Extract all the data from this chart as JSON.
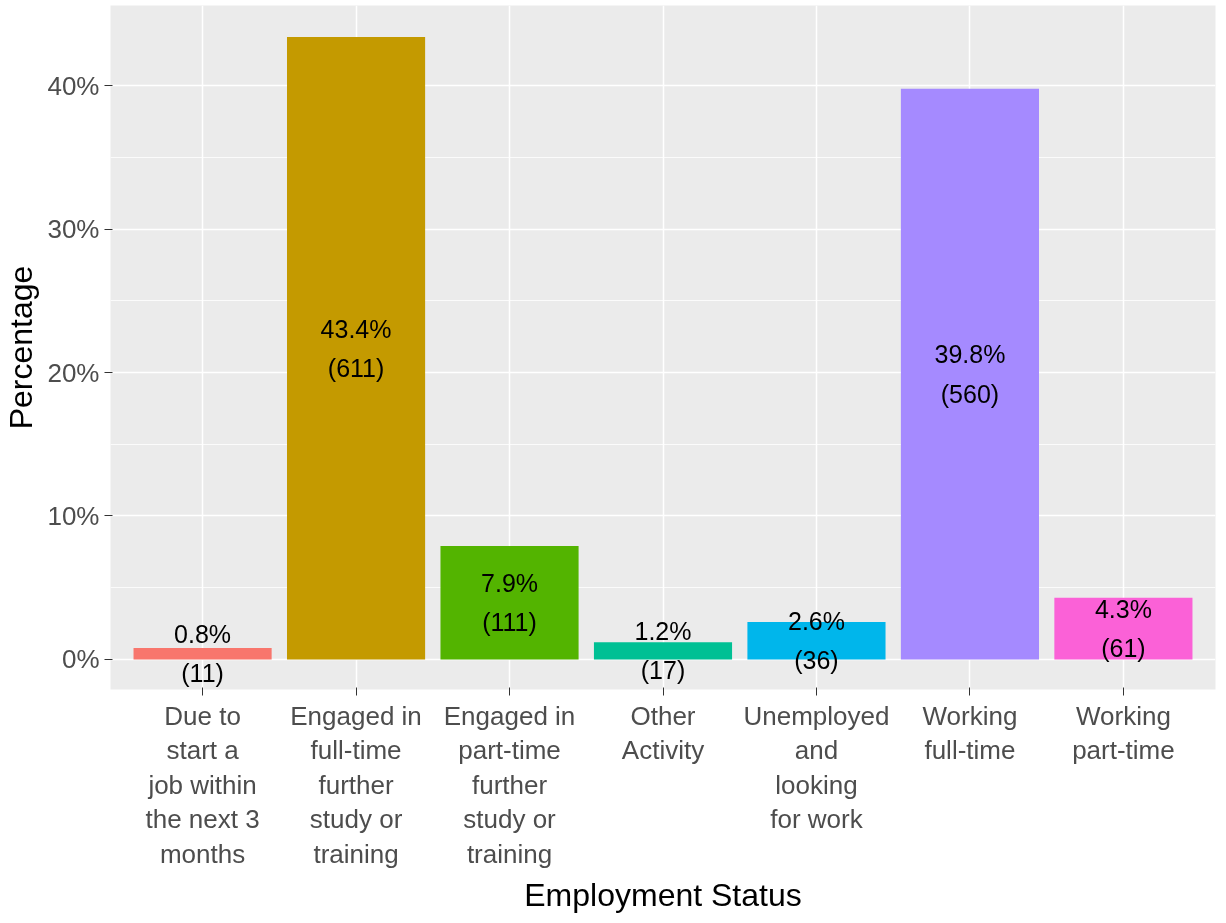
{
  "chart_data": {
    "type": "bar",
    "xlabel": "Employment Status",
    "ylabel": "Percentage",
    "categories": [
      "Due to\nstart a\njob within\nthe next 3\nmonths",
      "Engaged in\nfull-time\nfurther\nstudy or\ntraining",
      "Engaged in\npart-time\nfurther\nstudy or\ntraining",
      "Other\nActivity",
      "Unemployed\nand\nlooking\nfor work",
      "Working\nfull-time",
      "Working\npart-time"
    ],
    "values": [
      0.8,
      43.4,
      7.9,
      1.2,
      2.6,
      39.8,
      4.3
    ],
    "colors": [
      "#f8766d",
      "#c49a00",
      "#53b400",
      "#00c094",
      "#00b6eb",
      "#a58aff",
      "#fb61d7"
    ],
    "value_labels": [
      "0.8%\n(11)",
      "43.4%\n(611)",
      "7.9%\n(111)",
      "1.2%\n(17)",
      "2.6%\n(36)",
      "39.8%\n(560)",
      "4.3%\n(61)"
    ],
    "ylim": [
      -2.1,
      45.6
    ],
    "yticks": [
      {
        "value": 0,
        "label": "0%"
      },
      {
        "value": 10,
        "label": "10%"
      },
      {
        "value": 20,
        "label": "20%"
      },
      {
        "value": 30,
        "label": "30%"
      },
      {
        "value": 40,
        "label": "40%"
      }
    ],
    "grid": true
  }
}
